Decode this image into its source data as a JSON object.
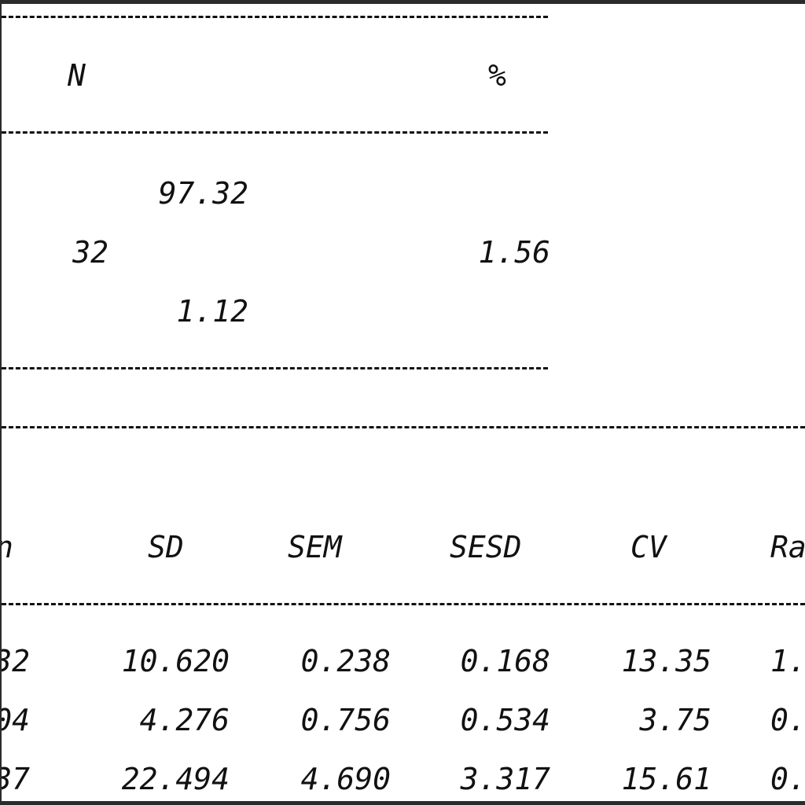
{
  "top_table": {
    "headers": {
      "n": "N",
      "pct": "%"
    },
    "rows": [
      {
        "mid": "97.32"
      },
      {
        "n": "32",
        "pct": "1.56"
      },
      {
        "mid": "1.12"
      }
    ]
  },
  "stats_table": {
    "headers": {
      "mean_partial": "n",
      "sd": "SD",
      "sem": "SEM",
      "sesd": "SESD",
      "cv": "CV",
      "range_partial": "Ra"
    },
    "rows": [
      {
        "mean_partial": "32",
        "sd": "10.620",
        "sem": "0.238",
        "sesd": "0.168",
        "cv": "13.35",
        "range_partial": "1."
      },
      {
        "mean_partial": "04",
        "sd": "4.276",
        "sem": "0.756",
        "sesd": "0.534",
        "cv": "3.75",
        "range_partial": "0."
      },
      {
        "mean_partial": "37",
        "sd": "22.494",
        "sem": "4.690",
        "sesd": "3.317",
        "cv": "15.61",
        "range_partial": "0."
      }
    ]
  }
}
